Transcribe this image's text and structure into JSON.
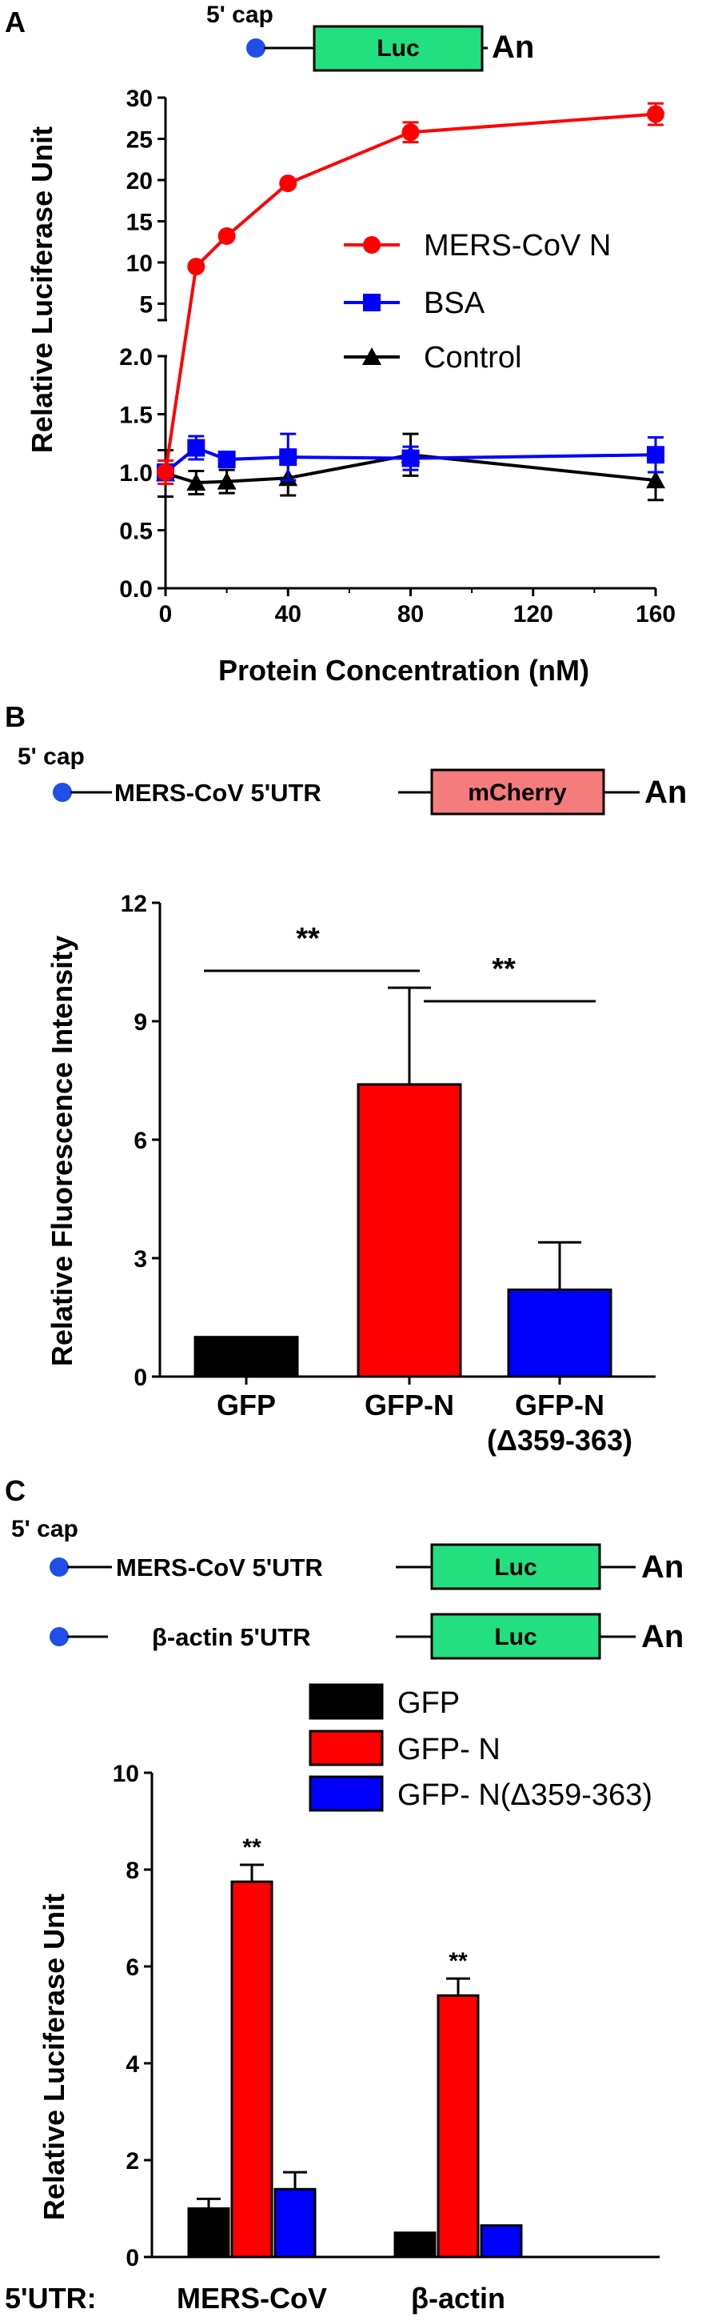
{
  "colors": {
    "red": "#ff0000",
    "blue": "#0000ff",
    "black": "#000000",
    "green": "#22e07f",
    "salmon": "#f47c7c",
    "dot": "#1f4fe8"
  },
  "panelA": {
    "letter": "A",
    "construct": {
      "cap": "5' cap",
      "box": "Luc",
      "tail": "An"
    },
    "chart_data": {
      "type": "line",
      "xlabel": "Protein Concentration (nM)",
      "ylabel": "Relative Luciferase Unit",
      "xlim": [
        0,
        160
      ],
      "xticks": [
        "0",
        "40",
        "80",
        "120",
        "160"
      ],
      "yticks_lower": [
        "0.0",
        "0.5",
        "1.0",
        "1.5",
        "2.0"
      ],
      "yticks_upper": [
        "5",
        "10",
        "15",
        "20",
        "25",
        "30"
      ],
      "ylim_lower": [
        0,
        2.0
      ],
      "ylim_upper": [
        3,
        30
      ],
      "axis_break": true,
      "legend_position": "right",
      "series": [
        {
          "name": "MERS-CoV N",
          "color": "#ff0000",
          "marker": "circle",
          "x": [
            0,
            10,
            20,
            40,
            80,
            160
          ],
          "y": [
            1.0,
            9.5,
            13.2,
            19.6,
            25.8,
            28.0
          ],
          "err": [
            0.1,
            0,
            0,
            0,
            1.2,
            1.3
          ]
        },
        {
          "name": "BSA",
          "color": "#0000ff",
          "marker": "square",
          "x": [
            0,
            10,
            20,
            40,
            80,
            160
          ],
          "y": [
            1.0,
            1.21,
            1.11,
            1.13,
            1.12,
            1.15
          ],
          "err": [
            0.1,
            0.1,
            0.05,
            0.2,
            0.1,
            0.15
          ]
        },
        {
          "name": "Control",
          "color": "#000000",
          "marker": "triangle",
          "x": [
            0,
            10,
            20,
            40,
            80,
            160
          ],
          "y": [
            0.99,
            0.91,
            0.92,
            0.95,
            1.15,
            0.93
          ],
          "err": [
            0.2,
            0.1,
            0.1,
            0.15,
            0.18,
            0.17
          ]
        }
      ]
    }
  },
  "panelB": {
    "letter": "B",
    "construct": {
      "cap": "5' cap",
      "utr": "MERS-CoV 5'UTR",
      "box": "mCherry",
      "tail": "An"
    },
    "chart_data": {
      "type": "bar",
      "ylabel": "Relative Fluorescence Intensity",
      "ylim": [
        0,
        12
      ],
      "yticks": [
        "0",
        "3",
        "6",
        "9",
        "12"
      ],
      "categories": [
        "GFP",
        "GFP-N",
        "GFP-N"
      ],
      "category_sublabels": [
        "",
        "",
        "(Δ359-363)"
      ],
      "values": [
        1.0,
        7.4,
        2.2
      ],
      "errors": [
        0,
        2.45,
        1.2
      ],
      "colors": [
        "#000000",
        "#ff0000",
        "#0000ff"
      ],
      "significance": [
        "**",
        "**"
      ]
    }
  },
  "panelC": {
    "letter": "C",
    "construct1": {
      "cap": "5' cap",
      "utr": "MERS-CoV 5'UTR",
      "box": "Luc",
      "tail": "An"
    },
    "construct2": {
      "utr": "β-actin 5'UTR",
      "box": "Luc",
      "tail": "An"
    },
    "chart_data": {
      "type": "bar",
      "ylabel": "Relative Luciferase Unit",
      "ylim": [
        0,
        10
      ],
      "yticks": [
        "0",
        "2",
        "4",
        "6",
        "8",
        "10"
      ],
      "x_prefix": "5'UTR:",
      "categories": [
        "MERS-CoV",
        "β-actin"
      ],
      "legend_position": "top-right",
      "series": [
        {
          "name": "GFP",
          "color": "#000000",
          "values": [
            1.0,
            0.5
          ],
          "errors": [
            0.2,
            0
          ]
        },
        {
          "name": "GFP- N",
          "color": "#ff0000",
          "values": [
            7.75,
            5.4
          ],
          "errors": [
            0.35,
            0.35
          ]
        },
        {
          "name": "GFP- N(Δ359-363)",
          "color": "#0000ff",
          "values": [
            1.4,
            0.65
          ],
          "errors": [
            0.35,
            0
          ]
        }
      ],
      "significance": [
        "**",
        "**"
      ]
    }
  }
}
